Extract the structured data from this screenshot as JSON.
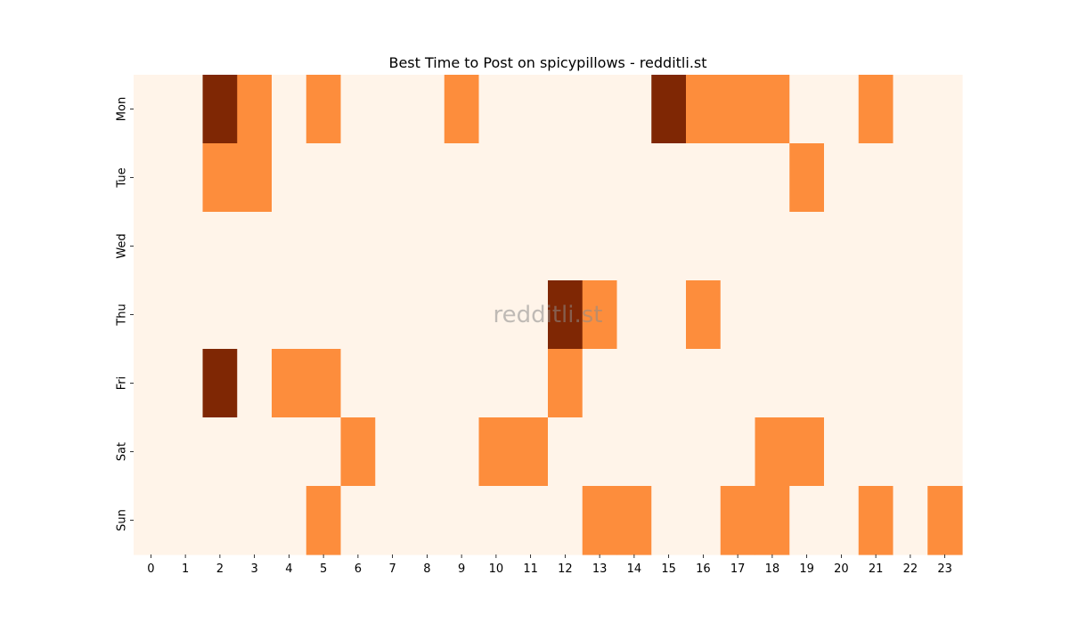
{
  "chart_data": {
    "type": "heatmap",
    "title": "Best Time to Post on spicypillows - redditli.st",
    "x_categories": [
      "0",
      "1",
      "2",
      "3",
      "4",
      "5",
      "6",
      "7",
      "8",
      "9",
      "10",
      "11",
      "12",
      "13",
      "14",
      "15",
      "16",
      "17",
      "18",
      "19",
      "20",
      "21",
      "22",
      "23"
    ],
    "y_categories": [
      "Mon",
      "Tue",
      "Wed",
      "Thu",
      "Fri",
      "Sat",
      "Sun"
    ],
    "values": [
      [
        0,
        0,
        2,
        1,
        0,
        1,
        0,
        0,
        0,
        1,
        0,
        0,
        0,
        0,
        0,
        2,
        1,
        1,
        1,
        0,
        0,
        1,
        0,
        0
      ],
      [
        0,
        0,
        1,
        1,
        0,
        0,
        0,
        0,
        0,
        0,
        0,
        0,
        0,
        0,
        0,
        0,
        0,
        0,
        0,
        1,
        0,
        0,
        0,
        0
      ],
      [
        0,
        0,
        0,
        0,
        0,
        0,
        0,
        0,
        0,
        0,
        0,
        0,
        0,
        0,
        0,
        0,
        0,
        0,
        0,
        0,
        0,
        0,
        0,
        0
      ],
      [
        0,
        0,
        0,
        0,
        0,
        0,
        0,
        0,
        0,
        0,
        0,
        0,
        2,
        1,
        0,
        0,
        1,
        0,
        0,
        0,
        0,
        0,
        0,
        0
      ],
      [
        0,
        0,
        2,
        0,
        1,
        1,
        0,
        0,
        0,
        0,
        0,
        0,
        1,
        0,
        0,
        0,
        0,
        0,
        0,
        0,
        0,
        0,
        0,
        0
      ],
      [
        0,
        0,
        0,
        0,
        0,
        0,
        1,
        0,
        0,
        0,
        1,
        1,
        0,
        0,
        0,
        0,
        0,
        0,
        1,
        1,
        0,
        0,
        0,
        0
      ],
      [
        0,
        0,
        0,
        0,
        0,
        1,
        0,
        0,
        0,
        0,
        0,
        0,
        0,
        1,
        1,
        0,
        0,
        1,
        1,
        0,
        0,
        1,
        0,
        1
      ]
    ],
    "colormap": "Oranges",
    "color_levels": [
      "#fff4e9",
      "#fd8d3c",
      "#7f2704"
    ],
    "grid": false,
    "legend": "none",
    "watermark": "redditli.st"
  }
}
